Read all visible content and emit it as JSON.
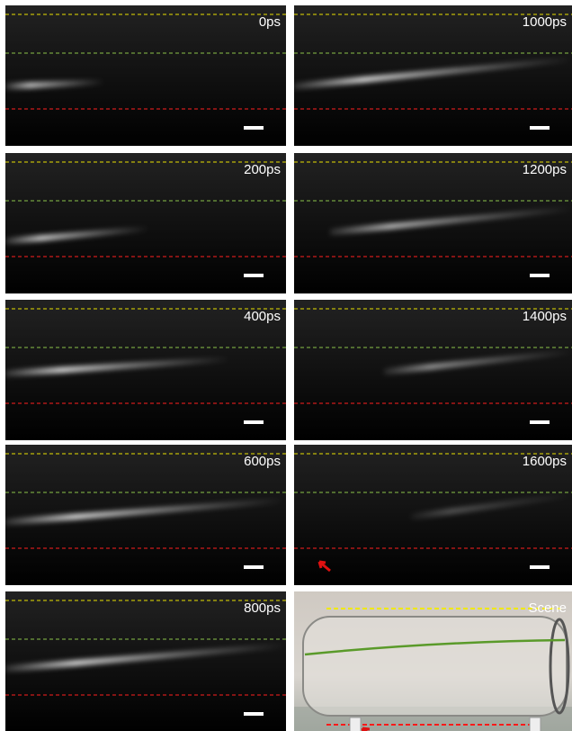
{
  "panels": [
    {
      "label": "0ps"
    },
    {
      "label": "200ps"
    },
    {
      "label": "400ps"
    },
    {
      "label": "600ps"
    },
    {
      "label": "800ps"
    },
    {
      "label": "1000ps"
    },
    {
      "label": "1200ps"
    },
    {
      "label": "1400ps"
    },
    {
      "label": "1600ps"
    },
    {
      "label": "Scene"
    }
  ]
}
